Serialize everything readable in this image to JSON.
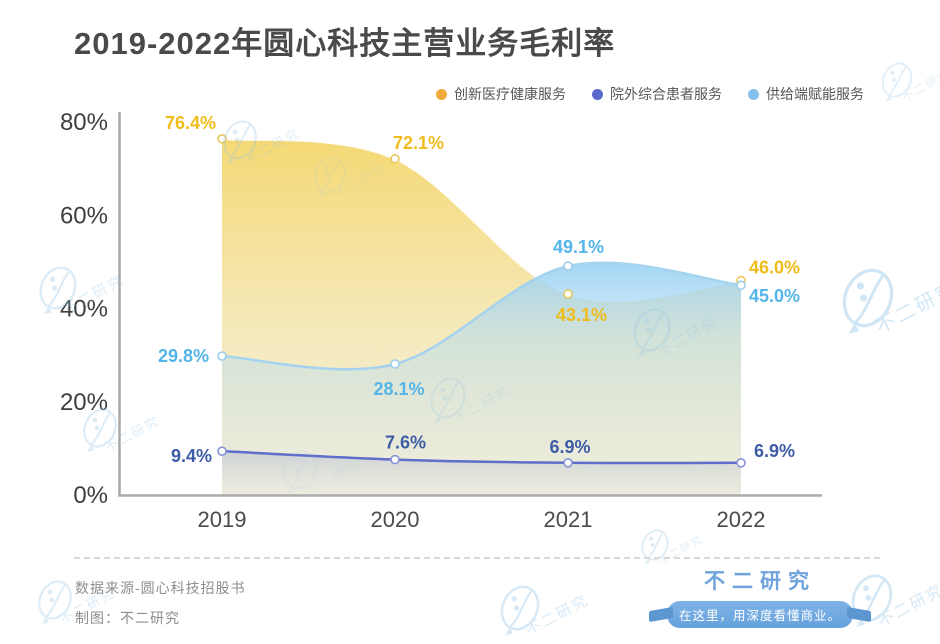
{
  "title": "2019-2022年圆心科技主营业务毛利率",
  "watermark": "不二研究",
  "footer": {
    "source": "数据来源-圆心科技招股书",
    "credit": "制图：不二研究"
  },
  "brand": {
    "name": "不二研究",
    "tagline": "在这里，用深度看懂商业。",
    "color": "#6fa3dc"
  },
  "chart_data": {
    "type": "area",
    "title": "2019-2022年圆心科技主营业务毛利率",
    "x": [
      "2019",
      "2020",
      "2021",
      "2022"
    ],
    "xlabel": "",
    "ylabel": "",
    "unit": "%",
    "ylim": [
      0,
      80
    ],
    "yticks": [
      "80%",
      "60%",
      "40%",
      "20%",
      "0%"
    ],
    "grid": false,
    "legend_position": "top-right",
    "series": [
      {
        "name": "创新医疗健康服务",
        "dot_color": "#f2a93b",
        "label_color": "#f0bc1c",
        "values": [
          76.4,
          72.1,
          43.1,
          46.0
        ]
      },
      {
        "name": "院外综合患者服务",
        "dot_color": "#5b68ce",
        "label_color": "#3d5ca6",
        "values": [
          9.4,
          7.6,
          6.9,
          6.9
        ]
      },
      {
        "name": "供给端赋能服务",
        "dot_color": "#82c1ec",
        "label_color": "#54b5e9",
        "values": [
          29.8,
          28.1,
          49.1,
          45.0
        ]
      }
    ]
  }
}
